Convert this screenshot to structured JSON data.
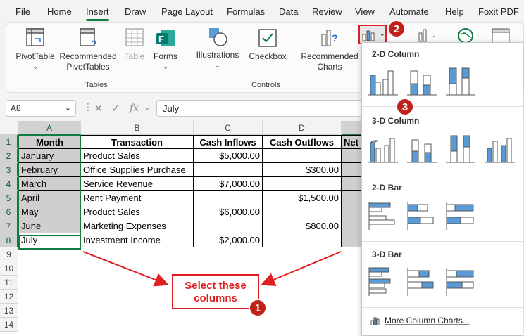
{
  "menu": {
    "tabs": [
      "File",
      "Home",
      "Insert",
      "Draw",
      "Page Layout",
      "Formulas",
      "Data",
      "Review",
      "View",
      "Automate",
      "Help",
      "Foxit PDF"
    ],
    "active": "Insert"
  },
  "ribbon": {
    "pivot_table": "PivotTable",
    "rec_pivot_1": "Recommended",
    "rec_pivot_2": "PivotTables",
    "table": "Table",
    "forms": "Forms",
    "illustrations": "Illustrations",
    "checkbox": "Checkbox",
    "rec_charts_1": "Recommended",
    "rec_charts_2": "Charts",
    "group_tables": "Tables",
    "group_controls": "Controls"
  },
  "formula_bar": {
    "name_box": "A8",
    "fx": "fx",
    "value": "July"
  },
  "columns": [
    "A",
    "B",
    "C",
    "D"
  ],
  "rows": [
    "1",
    "2",
    "3",
    "4",
    "5",
    "6",
    "7",
    "8",
    "9",
    "10",
    "11",
    "12",
    "13",
    "14"
  ],
  "table": {
    "headers": [
      "Month",
      "Transaction",
      "Cash Inflows",
      "Cash Outflows",
      "Net"
    ],
    "data": [
      [
        "January",
        "Product Sales",
        "$5,000.00",
        ""
      ],
      [
        "February",
        "Office Supplies Purchase",
        "",
        "$300.00"
      ],
      [
        "March",
        "Service Revenue",
        "$7,000.00",
        ""
      ],
      [
        "April",
        "Rent Payment",
        "",
        "$1,500.00"
      ],
      [
        "May",
        "Product Sales",
        "$6,000.00",
        ""
      ],
      [
        "June",
        "Marketing Expenses",
        "",
        "$800.00"
      ],
      [
        "July",
        "Investment Income",
        "$2,000.00",
        ""
      ]
    ]
  },
  "callout": {
    "line1": "Select these",
    "line2": "columns"
  },
  "badges": [
    "1",
    "2",
    "3"
  ],
  "chart_menu": {
    "sections": [
      "2-D Column",
      "3-D Column",
      "2-D Bar",
      "3-D Bar"
    ],
    "more": "More Column Charts..."
  },
  "colors": {
    "accent": "#107c41",
    "highlight_red": "#e02020",
    "chart_blue": "#5b9bd5"
  }
}
